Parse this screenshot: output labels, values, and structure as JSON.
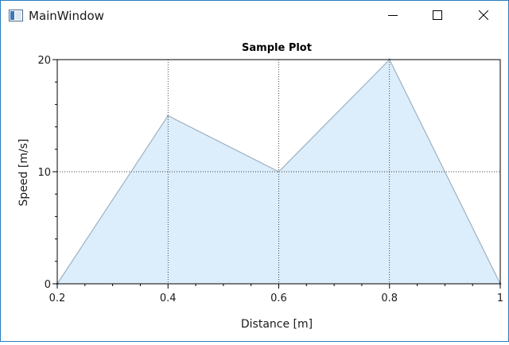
{
  "window": {
    "title": "MainWindow",
    "icons": [
      "app-window-icon",
      "minimize-icon",
      "maximize-icon",
      "close-icon"
    ]
  },
  "chart_data": {
    "type": "area",
    "title": "Sample Plot",
    "xlabel": "Distance [m]",
    "ylabel": "Speed [m/s]",
    "x": [
      0.2,
      0.4,
      0.6,
      0.8,
      1.0
    ],
    "series": [
      {
        "values": [
          0,
          15,
          10,
          20,
          0
        ]
      }
    ],
    "xlim": [
      0.2,
      1.0
    ],
    "ylim": [
      0,
      20
    ],
    "xticks": [
      "0.2",
      "0.4",
      "0.6",
      "0.8",
      "1"
    ],
    "yticks": [
      "0",
      "10",
      "20"
    ],
    "grid": true,
    "colors": {
      "fill": "#dcedfb",
      "line": "#9fb1bf",
      "grid": "#000000",
      "axis": "#000000"
    }
  }
}
